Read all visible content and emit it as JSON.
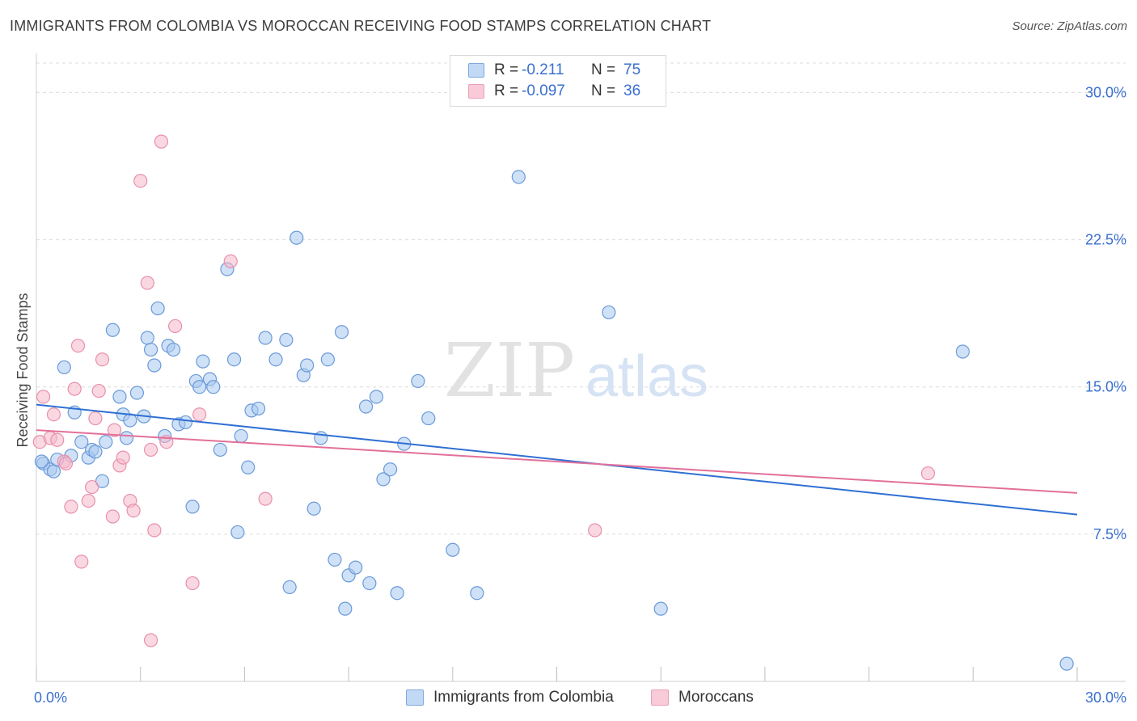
{
  "title": "IMMIGRANTS FROM COLOMBIA VS MOROCCAN RECEIVING FOOD STAMPS CORRELATION CHART",
  "source": "Source: ZipAtlas.com",
  "watermark": {
    "zip": "ZIP",
    "atlas": "atlas"
  },
  "legend": {
    "rows": [
      {
        "r_label": "R =",
        "r_value": "-0.211",
        "n_label": "N =",
        "n_value": "75"
      },
      {
        "r_label": "R =",
        "r_value": "-0.097",
        "n_label": "N =",
        "n_value": "36"
      }
    ]
  },
  "colors": {
    "blue_fill": "#a8c8f0",
    "blue_stroke": "#6a9ad8",
    "blue_line": "#2f6fd3",
    "pink_fill": "#f6b8cb",
    "pink_stroke": "#e890ac",
    "pink_line": "#e2709a",
    "tick_label": "#3a6fd0",
    "grid": "#dcdcdc"
  },
  "chart_data": {
    "type": "scatter",
    "title": "IMMIGRANTS FROM COLOMBIA VS MOROCCAN RECEIVING FOOD STAMPS CORRELATION CHART",
    "xlabel": "",
    "ylabel": "Receiving Food Stamps",
    "xlim": [
      0,
      30
    ],
    "ylim": [
      0,
      31.5
    ],
    "x_tick_labels": [
      "0.0%",
      "30.0%"
    ],
    "y_ticks": [
      7.5,
      15.0,
      22.5,
      30.0
    ],
    "y_tick_labels": [
      "7.5%",
      "15.0%",
      "22.5%",
      "30.0%"
    ],
    "grid": true,
    "legend_position": "top-center",
    "series": [
      {
        "name": "Immigrants from Colombia",
        "color": "#a8c8f0",
        "trend": {
          "x": [
            0,
            30
          ],
          "y": [
            14.1,
            8.5
          ]
        },
        "points": [
          [
            0.2,
            11.1
          ],
          [
            0.4,
            10.8
          ],
          [
            0.5,
            10.7
          ],
          [
            0.6,
            11.3
          ],
          [
            0.8,
            16.0
          ],
          [
            1.0,
            11.5
          ],
          [
            1.1,
            13.7
          ],
          [
            1.3,
            12.2
          ],
          [
            1.5,
            11.4
          ],
          [
            1.6,
            11.8
          ],
          [
            1.7,
            11.7
          ],
          [
            1.9,
            10.2
          ],
          [
            2.0,
            12.2
          ],
          [
            2.2,
            17.9
          ],
          [
            2.4,
            14.5
          ],
          [
            2.5,
            13.6
          ],
          [
            2.6,
            12.4
          ],
          [
            2.7,
            13.3
          ],
          [
            2.9,
            14.7
          ],
          [
            3.1,
            13.5
          ],
          [
            3.2,
            17.5
          ],
          [
            3.3,
            16.9
          ],
          [
            3.4,
            16.1
          ],
          [
            3.5,
            19.0
          ],
          [
            3.7,
            12.5
          ],
          [
            3.8,
            17.1
          ],
          [
            3.95,
            16.9
          ],
          [
            4.1,
            13.1
          ],
          [
            4.3,
            13.2
          ],
          [
            4.5,
            8.9
          ],
          [
            4.6,
            15.3
          ],
          [
            4.7,
            15.0
          ],
          [
            4.8,
            16.3
          ],
          [
            5.0,
            15.4
          ],
          [
            5.1,
            15.0
          ],
          [
            5.3,
            11.8
          ],
          [
            5.5,
            21.0
          ],
          [
            5.7,
            16.4
          ],
          [
            5.8,
            7.6
          ],
          [
            5.9,
            12.5
          ],
          [
            6.1,
            10.9
          ],
          [
            6.2,
            13.8
          ],
          [
            6.4,
            13.9
          ],
          [
            6.6,
            17.5
          ],
          [
            6.9,
            16.4
          ],
          [
            7.2,
            17.4
          ],
          [
            7.5,
            22.6
          ],
          [
            7.7,
            15.6
          ],
          [
            7.8,
            16.1
          ],
          [
            8.0,
            8.8
          ],
          [
            8.2,
            12.4
          ],
          [
            8.4,
            16.4
          ],
          [
            8.6,
            6.2
          ],
          [
            8.8,
            17.8
          ],
          [
            9.0,
            5.4
          ],
          [
            9.2,
            5.8
          ],
          [
            9.5,
            14.0
          ],
          [
            9.6,
            5.0
          ],
          [
            9.8,
            14.5
          ],
          [
            10.0,
            10.3
          ],
          [
            10.2,
            10.8
          ],
          [
            10.4,
            4.5
          ],
          [
            10.6,
            12.1
          ],
          [
            11.0,
            15.3
          ],
          [
            11.3,
            13.4
          ],
          [
            12.0,
            6.7
          ],
          [
            12.7,
            4.5
          ],
          [
            13.9,
            25.7
          ],
          [
            16.5,
            18.8
          ],
          [
            18.0,
            3.7
          ],
          [
            26.7,
            16.8
          ],
          [
            29.7,
            0.9
          ],
          [
            7.3,
            4.8
          ],
          [
            8.9,
            3.7
          ],
          [
            0.15,
            11.2
          ]
        ]
      },
      {
        "name": "Moroccans",
        "color": "#f6b8cb",
        "trend": {
          "x": [
            0,
            30
          ],
          "y": [
            12.8,
            9.6
          ]
        },
        "points": [
          [
            0.1,
            12.2
          ],
          [
            0.2,
            14.5
          ],
          [
            0.4,
            12.4
          ],
          [
            0.5,
            13.6
          ],
          [
            0.6,
            12.3
          ],
          [
            0.8,
            11.2
          ],
          [
            0.85,
            11.1
          ],
          [
            1.0,
            8.9
          ],
          [
            1.1,
            14.9
          ],
          [
            1.2,
            17.1
          ],
          [
            1.3,
            6.1
          ],
          [
            1.5,
            9.2
          ],
          [
            1.6,
            9.9
          ],
          [
            1.7,
            13.4
          ],
          [
            1.8,
            14.8
          ],
          [
            1.9,
            16.4
          ],
          [
            2.2,
            8.4
          ],
          [
            2.25,
            12.8
          ],
          [
            2.4,
            11.0
          ],
          [
            2.5,
            11.4
          ],
          [
            2.7,
            9.2
          ],
          [
            2.8,
            8.7
          ],
          [
            3.0,
            25.5
          ],
          [
            3.2,
            20.3
          ],
          [
            3.3,
            11.8
          ],
          [
            3.4,
            7.7
          ],
          [
            3.6,
            27.5
          ],
          [
            3.75,
            12.2
          ],
          [
            4.0,
            18.1
          ],
          [
            4.5,
            5.0
          ],
          [
            4.7,
            13.6
          ],
          [
            5.6,
            21.4
          ],
          [
            6.6,
            9.3
          ],
          [
            3.3,
            2.1
          ],
          [
            16.1,
            7.7
          ],
          [
            25.7,
            10.6
          ]
        ]
      }
    ]
  }
}
